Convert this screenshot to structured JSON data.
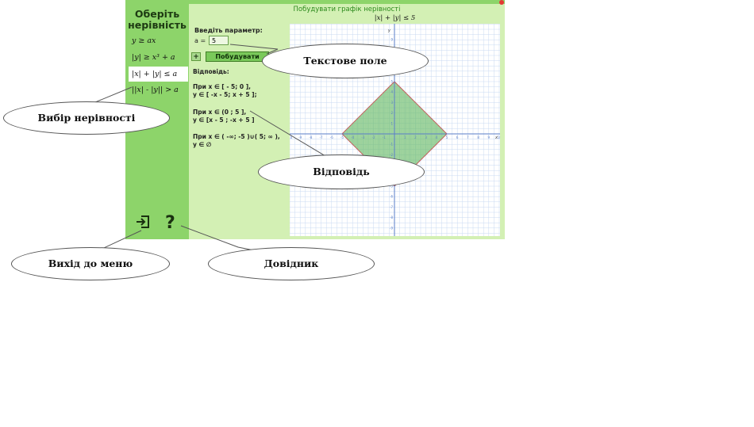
{
  "header": {
    "title": "Побудувати графік нерівності"
  },
  "sidebar": {
    "title": "Оберіть нерівність",
    "items": [
      {
        "label": "y ≥ ax"
      },
      {
        "label": "|y| ≥ x³ + a"
      },
      {
        "label": "|x| + |y| ≤ a"
      },
      {
        "label": "||x| - |y|| > a"
      }
    ]
  },
  "form": {
    "param_label": "Введіть параметр:",
    "a_label": "a =",
    "a_value": "5",
    "plus_label": "+",
    "build_label": "Побудувати"
  },
  "answer": {
    "label": "Відповідь:",
    "lines": [
      "При x ∈ [ - 5; 0 ],",
      "y ∈ [ -x - 5; x + 5 ];",
      "При x ∈ (0 ; 5 ],",
      "y ∈ [x - 5 ; -x + 5 ]",
      "При x ∈ ( -∞; -5 )∪( 5; ∞ ),",
      "y ∈ ∅"
    ]
  },
  "graph": {
    "title": "|x| + |y| ≤ 5",
    "x_axis_label": "x",
    "y_axis_label": "y",
    "x_ticks": [
      "-10",
      "-9",
      "-8",
      "-7",
      "-6",
      "-5",
      "-4",
      "-3",
      "-2",
      "-1",
      "1",
      "2",
      "3",
      "4",
      "5",
      "6",
      "7",
      "8",
      "9",
      "10"
    ],
    "y_ticks": [
      "11",
      "9",
      "8",
      "7",
      "6",
      "5",
      "4",
      "3",
      "2",
      "1",
      "-1",
      "-2",
      "-3",
      "-4",
      "-5",
      "-6",
      "-7",
      "-8",
      "-9"
    ],
    "parameter": 5,
    "fill_color": "#5fb55f",
    "grid_color": "#c9d9f2",
    "axis_color": "#5a7ec8"
  },
  "nav": {
    "exit_icon": "exit-icon",
    "help_icon": "?"
  },
  "callouts": {
    "text_field": "Текстове поле",
    "choose_inequality": "Вибір нерівності",
    "answer": "Відповідь",
    "exit_menu": "Вихід до меню",
    "help": "Довідник"
  },
  "colors": {
    "sidebar": "#8dd46a",
    "panel": "#d3f0b4",
    "close": "#e53935"
  }
}
